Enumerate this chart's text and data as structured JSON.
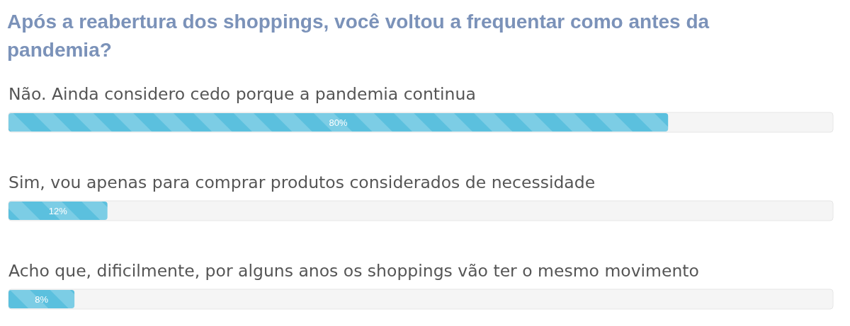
{
  "chart_data": {
    "type": "bar",
    "orientation": "horizontal",
    "title": "Após a reabertura dos shoppings, você voltou a frequentar como antes da pandemia?",
    "categories": [
      "Não. Ainda considero cedo porque a pandemia continua",
      "Sim, vou apenas para comprar produtos considerados de necessidade",
      "Acho que, dificilmente, por alguns anos os shoppings vão ter o mesmo movimento"
    ],
    "values": [
      80,
      12,
      8
    ],
    "value_labels": [
      "80%",
      "12%",
      "8%"
    ],
    "color": "#5bc0de",
    "xlim": [
      0,
      100
    ],
    "tick_labels": "y"
  }
}
